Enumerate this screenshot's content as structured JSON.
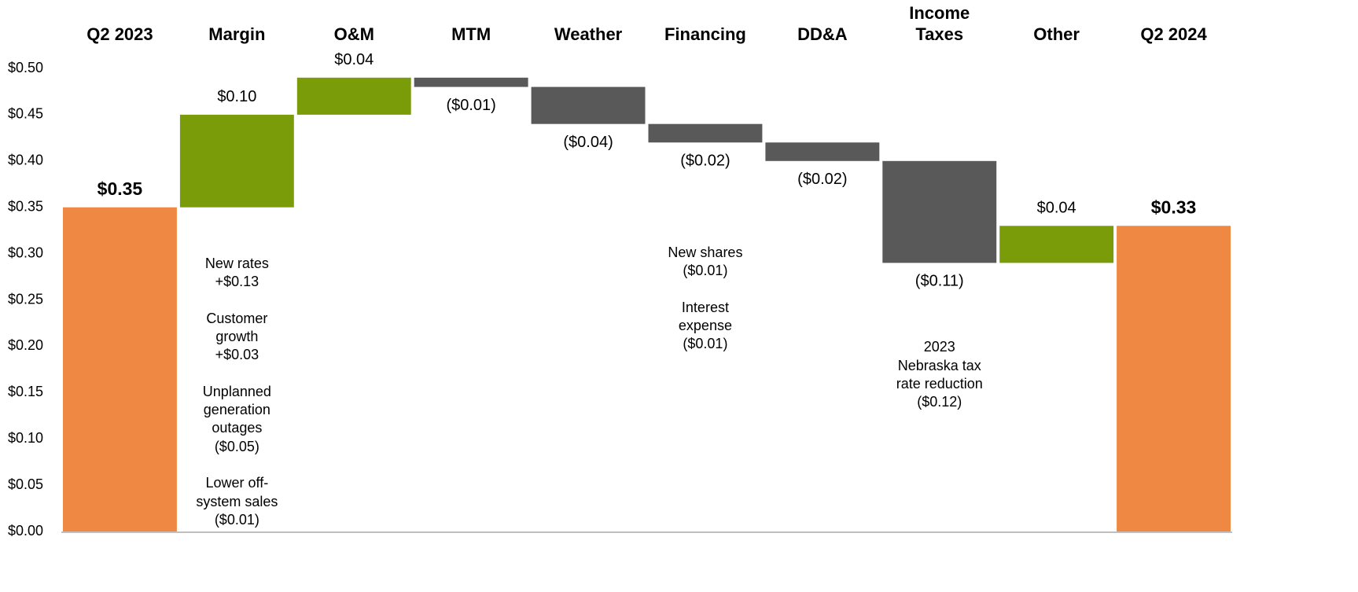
{
  "chart_data": {
    "type": "waterfall",
    "categories": [
      "Q2 2023",
      "Margin",
      "O&M",
      "MTM",
      "Weather",
      "Financing",
      "DD&A",
      "Income\nTaxes",
      "Other",
      "Q2 2024"
    ],
    "values": [
      0.35,
      0.1,
      0.04,
      -0.01,
      -0.04,
      -0.02,
      -0.02,
      -0.11,
      0.04,
      0.33
    ],
    "value_labels": [
      "$0.35",
      "$0.10",
      "$0.04",
      "($0.01)",
      "($0.04)",
      "($0.02)",
      "($0.02)",
      "($0.11)",
      "$0.04",
      "$0.33"
    ],
    "totals": [
      true,
      false,
      false,
      false,
      false,
      false,
      false,
      false,
      false,
      true
    ],
    "colors": [
      "#ef8842",
      "#7a9c08",
      "#7a9c08",
      "#595959",
      "#595959",
      "#595959",
      "#595959",
      "#595959",
      "#7a9c08",
      "#ef8842"
    ],
    "ylim": [
      0,
      0.5
    ],
    "yticks": [
      {
        "value": 0,
        "label": "$0.00"
      },
      {
        "value": 0.05,
        "label": "$0.05"
      },
      {
        "value": 0.1,
        "label": "$0.10"
      },
      {
        "value": 0.15,
        "label": "$0.15"
      },
      {
        "value": 0.2,
        "label": "$0.20"
      },
      {
        "value": 0.25,
        "label": "$0.25"
      },
      {
        "value": 0.3,
        "label": "$0.30"
      },
      {
        "value": 0.35,
        "label": "$0.35"
      },
      {
        "value": 0.4,
        "label": "$0.40"
      },
      {
        "value": 0.45,
        "label": "$0.45"
      },
      {
        "value": 0.5,
        "label": "$0.50"
      }
    ],
    "annotations": [
      {
        "x": "Margin",
        "text": "New rates\n+$0.13\n\nCustomer\ngrowth\n+$0.03\n\nUnplanned\ngeneration\noutages\n($0.05)\n\nLower off-\nsystem sales\n($0.01)"
      },
      {
        "x": "Financing",
        "text": "New shares\n($0.01)\n\nInterest\nexpense\n($0.01)"
      },
      {
        "x": "Income\nTaxes",
        "text": "2023\nNebraska tax\nrate reduction\n($0.12)"
      }
    ]
  }
}
